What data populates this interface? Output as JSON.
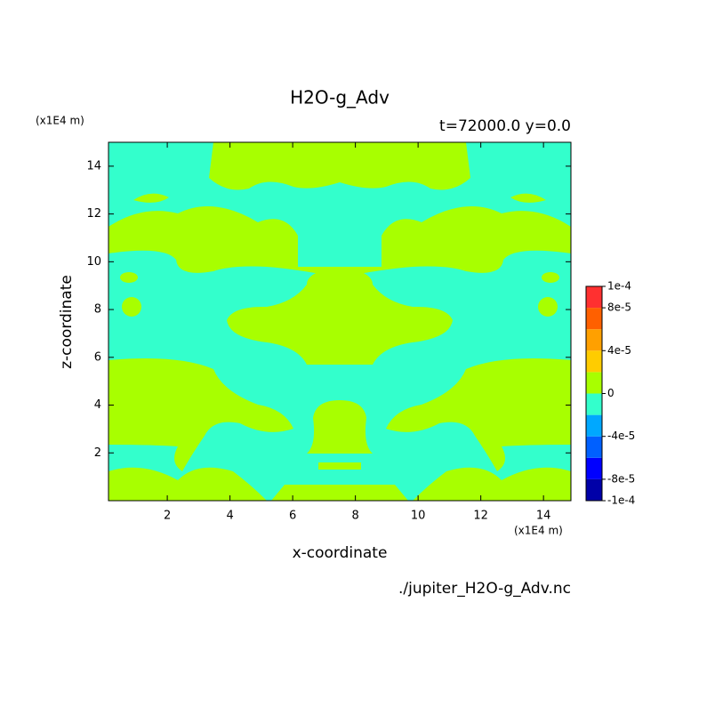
{
  "chart_data": {
    "type": "contour",
    "title": "H2O-g_Adv",
    "subtitle": "t=72000.0 y=0.0",
    "y_unit": "(x1E4 m)",
    "x_unit": "(x1E4 m)",
    "xlabel": "x-coordinate",
    "ylabel": "z-coordinate",
    "source": "./jupiter_H2O-g_Adv.nc",
    "xlim": [
      0.125,
      14.875
    ],
    "ylim": [
      0,
      15
    ],
    "xticks": [
      2,
      4,
      6,
      8,
      10,
      12,
      14
    ],
    "yticks": [
      2,
      4,
      6,
      8,
      10,
      12,
      14
    ],
    "colorbar": {
      "levels": [
        -0.0001,
        -8e-05,
        -6e-05,
        -4e-05,
        -2e-05,
        0,
        2e-05,
        4e-05,
        6e-05,
        8e-05,
        0.0001
      ],
      "colors": [
        "#0000a8",
        "#0000ff",
        "#0060ff",
        "#00a8ff",
        "#33ffcc",
        "#a8ff00",
        "#ffcc00",
        "#ffa000",
        "#ff6000",
        "#ff3030"
      ],
      "ticks": [
        {
          "value": 0.0001,
          "label": "1e-4"
        },
        {
          "value": 8e-05,
          "label": "8e-5"
        },
        {
          "value": 4e-05,
          "label": "4e-5"
        },
        0,
        {
          "value": -4e-05,
          "label": "-4e-5"
        },
        {
          "value": -8e-05,
          "label": "-8e-5"
        },
        {
          "value": -0.0001,
          "label": "-1e-4"
        }
      ]
    }
  }
}
